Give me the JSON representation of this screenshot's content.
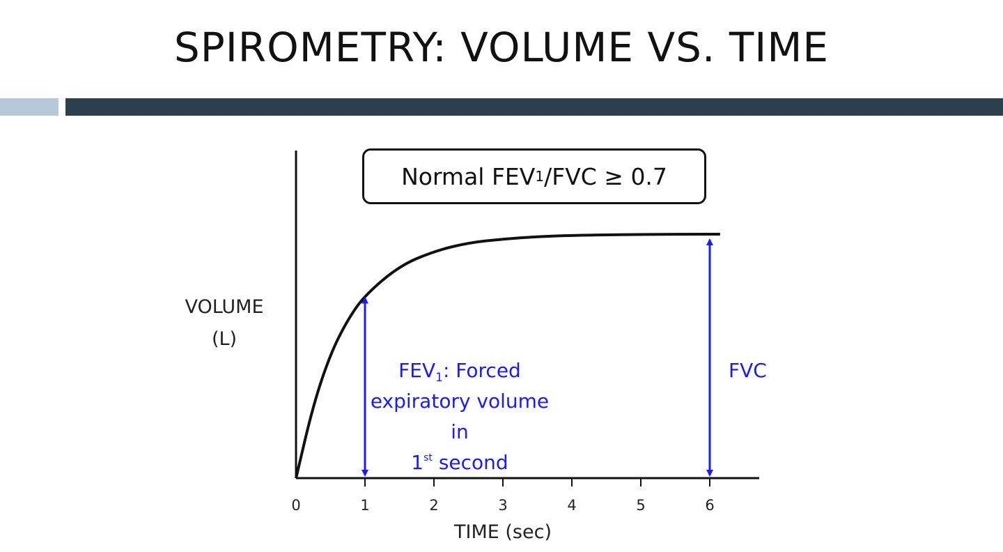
{
  "slide": {
    "title": "SPIROMETRY: VOLUME VS. TIME"
  },
  "colors": {
    "accent_light": "#b9c7da",
    "accent_dark": "#2b3f4f",
    "curve": "#111111",
    "annotation": "#1a1aff"
  },
  "callout": {
    "prefix": "Normal FEV",
    "subscript": "1",
    "suffix": "/FVC ≥ 0.7"
  },
  "axes": {
    "y_label_line1": "VOLUME",
    "y_label_line2": "(L)",
    "x_label": "TIME (sec)",
    "x_ticks": [
      "0",
      "1",
      "2",
      "3",
      "4",
      "5",
      "6"
    ]
  },
  "annotations": {
    "fev1": {
      "term": "FEV",
      "term_sub": "1",
      "line1_rest": ": Forced",
      "line2": "expiratory volume in",
      "line3_number": "1",
      "line3_sup": "st",
      "line3_rest": " second"
    },
    "fvc": "FVC"
  },
  "chart_data": {
    "type": "line",
    "xlim": [
      0,
      6.6
    ],
    "x_ticks": [
      0,
      1,
      2,
      3,
      4,
      5,
      6
    ],
    "series": [
      {
        "x": [
          0,
          0.25,
          0.5,
          0.75,
          1,
          1.5,
          2,
          2.5,
          3,
          3.5,
          4,
          5,
          6,
          6.15
        ],
        "y": [
          0,
          0.3,
          0.51,
          0.65,
          0.75,
          0.87,
          0.93,
          0.965,
          0.98,
          0.99,
          0.995,
          0.999,
          1,
          1
        ]
      }
    ],
    "markers": [
      {
        "x": 1,
        "y": 0.75,
        "label": "FEV1"
      },
      {
        "x": 6,
        "y": 1,
        "label": "FVC"
      }
    ]
  }
}
